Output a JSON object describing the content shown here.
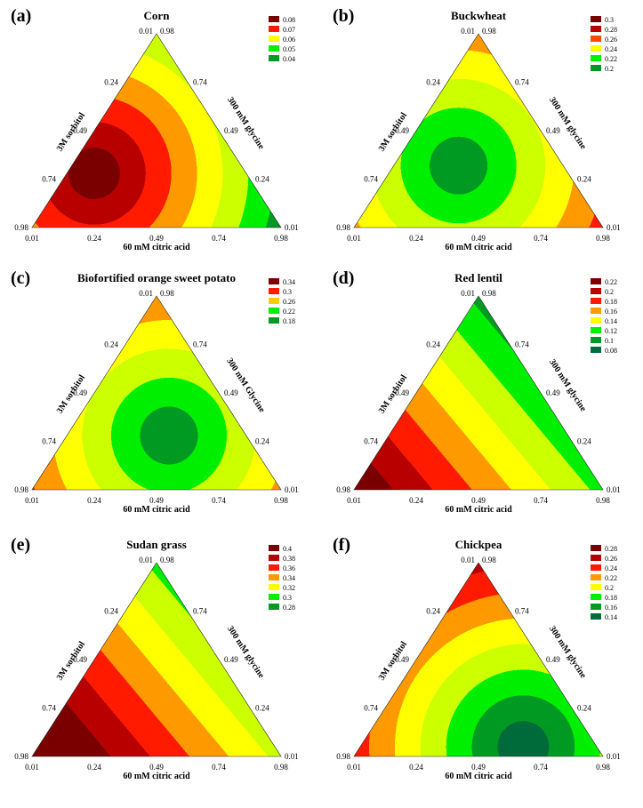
{
  "figure": {
    "colors": {
      "dark_red": "#7a0000",
      "red": "#b80000",
      "bright_red": "#ff1a00",
      "orange": "#ff9900",
      "yellow": "#ffff00",
      "yellow_green": "#ccff00",
      "green": "#00ee00",
      "mid_green": "#009a22",
      "dark_green": "#006b3a"
    }
  },
  "chart_data": [
    {
      "type": "ternary",
      "letter": "(a)",
      "title": "Corn",
      "bottom_axis_label": "60 mM citric acid",
      "left_axis_label": "3M sorbitol",
      "right_axis_label": "300 mM glycine",
      "bottom_ticks": [
        "0.01",
        "0.24",
        "0.49",
        "0.74",
        "0.98"
      ],
      "left_ticks": [
        "0.98",
        "0.74",
        "0.49",
        "0.24",
        "0.01"
      ],
      "right_ticks": [
        "0.98",
        "0.74",
        "0.49",
        "0.24",
        "0.01"
      ],
      "legend": [
        {
          "label": "0.08",
          "color": "#7a0000"
        },
        {
          "label": "0.07",
          "color": "#ff1a00"
        },
        {
          "label": "0.06",
          "color": "#ffff00"
        },
        {
          "label": "0.05",
          "color": "#00ee00"
        },
        {
          "label": "0.04",
          "color": "#009a22"
        }
      ],
      "bands": [
        "#7a0000",
        "#b80000",
        "#ff1a00",
        "#ff9900",
        "#ffff00",
        "#ccff00",
        "#00ee00",
        "#009a22",
        "#006b3a"
      ],
      "gradient_focus": [
        0.25,
        0.72
      ],
      "gradient_angle": 0
    },
    {
      "type": "ternary",
      "letter": "(b)",
      "title": "Buckwheat",
      "bottom_axis_label": "60 mM citric acid",
      "left_axis_label": "3M sorbitol",
      "right_axis_label": "300 mM glycine",
      "bottom_ticks": [
        "0.01",
        "0.24",
        "0.49",
        "0.74",
        "0.98"
      ],
      "left_ticks": [
        "0.98",
        "0.74",
        "0.49",
        "0.24",
        "0.01"
      ],
      "right_ticks": [
        "0.98",
        "0.74",
        "0.49",
        "0.24",
        "0.01"
      ],
      "legend": [
        {
          "label": "0.3",
          "color": "#7a0000"
        },
        {
          "label": "0.28",
          "color": "#b80000"
        },
        {
          "label": "0.26",
          "color": "#ff4a00"
        },
        {
          "label": "0.24",
          "color": "#ffff00"
        },
        {
          "label": "0.22",
          "color": "#00ee00"
        },
        {
          "label": "0.2",
          "color": "#009a22"
        }
      ],
      "bands": [
        "#009a22",
        "#00ee00",
        "#ccff00",
        "#ffff00",
        "#ff9900",
        "#ff1a00",
        "#b80000",
        "#7a0000"
      ],
      "gradient_focus": [
        0.42,
        0.68
      ],
      "gradient_angle": 0
    },
    {
      "type": "ternary",
      "letter": "(c)",
      "title": "Biofortified orange sweet potato",
      "bottom_axis_label": "60 mM citric acid",
      "left_axis_label": "3M sorbitol",
      "right_axis_label": "300 mM Glycine",
      "bottom_ticks": [
        "0.01",
        "0.24",
        "0.49",
        "0.74",
        "0.98"
      ],
      "left_ticks": [
        "0.98",
        "0.74",
        "0.49",
        "0.24",
        "0.01"
      ],
      "right_ticks": [
        "0.98",
        "0.74",
        "0.49",
        "0.24",
        "0.01"
      ],
      "legend": [
        {
          "label": "0.34",
          "color": "#7a0000"
        },
        {
          "label": "0.3",
          "color": "#ff1a00"
        },
        {
          "label": "0.26",
          "color": "#ffcc00"
        },
        {
          "label": "0.22",
          "color": "#00ee00"
        },
        {
          "label": "0.18",
          "color": "#009a22"
        }
      ],
      "bands": [
        "#009a22",
        "#00ee00",
        "#ccff00",
        "#ffff00",
        "#ff9900",
        "#ff1a00",
        "#b80000",
        "#7a0000"
      ],
      "gradient_focus": [
        0.55,
        0.72
      ],
      "gradient_angle": 0
    },
    {
      "type": "ternary",
      "letter": "(d)",
      "title": "Red lentil",
      "bottom_axis_label": "60 mM citric acid",
      "left_axis_label": "3M sorbitol",
      "right_axis_label": "300 mM glycine",
      "bottom_ticks": [
        "0.01",
        "0.24",
        "0.49",
        "0.74",
        "0.98"
      ],
      "left_ticks": [
        "0.98",
        "0.74",
        "0.49",
        "0.24",
        "0.01"
      ],
      "right_ticks": [
        "0.98",
        "0.74",
        "0.49",
        "0.24",
        "0.01"
      ],
      "legend": [
        {
          "label": "0.22",
          "color": "#7a0000"
        },
        {
          "label": "0.2",
          "color": "#b80000"
        },
        {
          "label": "0.18",
          "color": "#ff1a00"
        },
        {
          "label": "0.16",
          "color": "#ff9900"
        },
        {
          "label": "0.14",
          "color": "#ffff00"
        },
        {
          "label": "0.12",
          "color": "#00ee00"
        },
        {
          "label": "0.1",
          "color": "#009a22"
        },
        {
          "label": "0.08",
          "color": "#006b3a"
        }
      ],
      "bands": [
        "#7a0000",
        "#b80000",
        "#ff1a00",
        "#ff9900",
        "#ffff00",
        "#ccff00",
        "#00ee00",
        "#009a22",
        "#006b3a"
      ],
      "gradient_focus": [
        0.0,
        0.0
      ],
      "gradient_angle": 1
    },
    {
      "type": "ternary",
      "letter": "(e)",
      "title": "Sudan grass",
      "bottom_axis_label": "60 mM citric acid",
      "left_axis_label": "3M sorbitol",
      "right_axis_label": "300 mM glycine",
      "bottom_ticks": [
        "0.01",
        "0.24",
        "0.49",
        "0.74",
        "0.98"
      ],
      "left_ticks": [
        "0.98",
        "0.74",
        "0.49",
        "0.24",
        "0.01"
      ],
      "right_ticks": [
        "0.98",
        "0.74",
        "0.49",
        "0.24",
        "0.01"
      ],
      "legend": [
        {
          "label": "0.4",
          "color": "#7a0000"
        },
        {
          "label": "0.38",
          "color": "#b80000"
        },
        {
          "label": "0.36",
          "color": "#ff1a00"
        },
        {
          "label": "0.34",
          "color": "#ff9900"
        },
        {
          "label": "0.32",
          "color": "#ffff00"
        },
        {
          "label": "0.3",
          "color": "#00ee00"
        },
        {
          "label": "0.28",
          "color": "#009a22"
        }
      ],
      "bands": [
        "#7a0000",
        "#7a0000",
        "#b80000",
        "#ff1a00",
        "#ff9900",
        "#ffff00",
        "#ccff00",
        "#00ee00",
        "#009a22"
      ],
      "gradient_focus": [
        0.0,
        0.0
      ],
      "gradient_angle": 1
    },
    {
      "type": "ternary",
      "letter": "(f)",
      "title": "Chickpea",
      "bottom_axis_label": "60 mM citric acid",
      "left_axis_label": "3M sorbitol",
      "right_axis_label": "300 mM glycine",
      "bottom_ticks": [
        "0.01",
        "0.24",
        "0.49",
        "0.74",
        "0.98"
      ],
      "left_ticks": [
        "0.98",
        "0.74",
        "0.49",
        "0.24",
        "0.01"
      ],
      "right_ticks": [
        "0.98",
        "0.74",
        "0.49",
        "0.24",
        "0.01"
      ],
      "legend": [
        {
          "label": "0.28",
          "color": "#7a0000"
        },
        {
          "label": "0.26",
          "color": "#b80000"
        },
        {
          "label": "0.24",
          "color": "#ff1a00"
        },
        {
          "label": "0.22",
          "color": "#ff9900"
        },
        {
          "label": "0.2",
          "color": "#ffff00"
        },
        {
          "label": "0.18",
          "color": "#00ee00"
        },
        {
          "label": "0.16",
          "color": "#009a22"
        },
        {
          "label": "0.14",
          "color": "#006b3a"
        }
      ],
      "bands": [
        "#006b3a",
        "#009a22",
        "#00ee00",
        "#ccff00",
        "#ffff00",
        "#ff9900",
        "#ff1a00",
        "#b80000",
        "#7a0000"
      ],
      "gradient_focus": [
        0.68,
        0.95
      ],
      "gradient_angle": 0
    }
  ]
}
